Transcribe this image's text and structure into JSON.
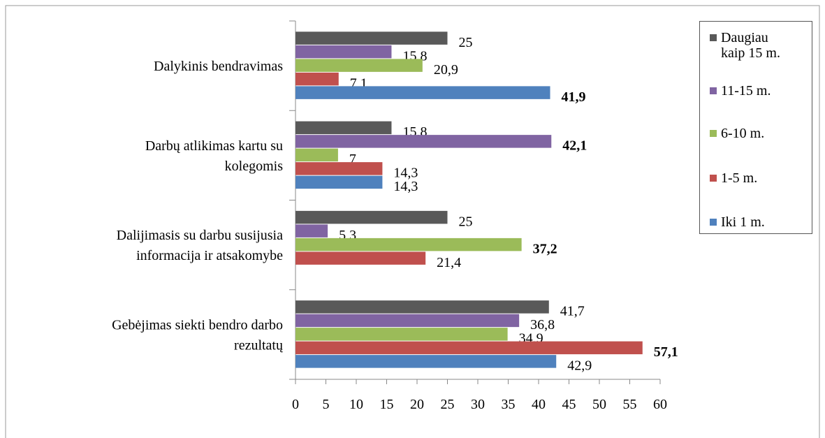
{
  "chart_data": {
    "type": "bar",
    "orientation": "horizontal",
    "categories": [
      [
        "Dalykinis bendravimas"
      ],
      [
        "Darbų atlikimas kartu su",
        "kolegomis"
      ],
      [
        "Dalijimasis su darbu susijusia",
        "informacija ir atsakomybe"
      ],
      [
        "Gebėjimas siekti bendro darbo",
        "rezultatų"
      ]
    ],
    "series": [
      {
        "name": "Daugiau kaip 15 m.",
        "color": "#595959",
        "values": [
          25,
          15.8,
          25,
          41.7
        ],
        "value_labels": [
          "25",
          "15,8",
          "25",
          "41,7"
        ]
      },
      {
        "name": "11-15 m.",
        "color": "#8064a2",
        "values": [
          15.8,
          42.1,
          5.3,
          36.8
        ],
        "value_labels": [
          "15,8",
          "42,1",
          "5,3",
          "36,8"
        ]
      },
      {
        "name": "6-10 m.",
        "color": "#9bbb59",
        "values": [
          20.9,
          7,
          37.2,
          34.9
        ],
        "value_labels": [
          "20,9",
          "7",
          "37,2",
          "34,9"
        ]
      },
      {
        "name": "1-5 m.",
        "color": "#c0504d",
        "values": [
          7.1,
          14.3,
          21.4,
          57.1
        ],
        "value_labels": [
          "7,1",
          "14,3",
          "21,4",
          "57,1"
        ]
      },
      {
        "name": "Iki 1 m.",
        "color": "#4f81bd",
        "values": [
          41.9,
          14.3,
          null,
          42.9
        ],
        "value_labels": [
          "41,9",
          "14,3",
          null,
          "42,9"
        ]
      }
    ],
    "xlim": [
      0,
      60
    ],
    "xticks": [
      0,
      5,
      10,
      15,
      20,
      25,
      30,
      35,
      40,
      45,
      50,
      55,
      60
    ],
    "legend": "right"
  }
}
